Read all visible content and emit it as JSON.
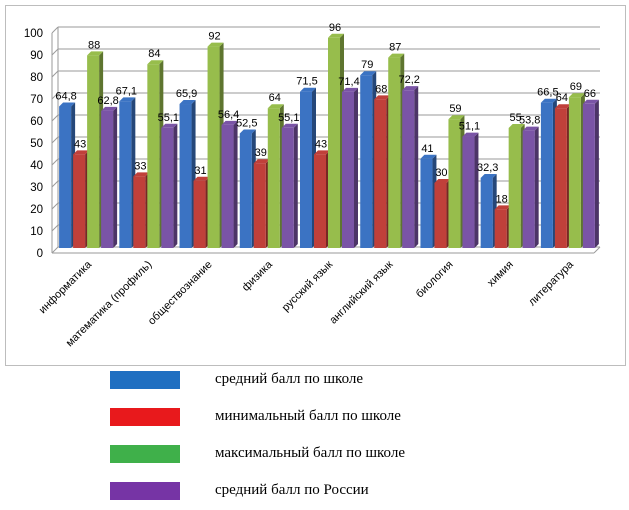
{
  "chart_data": {
    "type": "bar",
    "title": "",
    "xlabel": "",
    "ylabel": "",
    "ylim": [
      0,
      100
    ],
    "yticks": [
      "0",
      "10",
      "20",
      "30",
      "40",
      "50",
      "60",
      "70",
      "80",
      "90",
      "100"
    ],
    "grid": true,
    "legend_position": "bottom",
    "categories": [
      "информатика",
      "математика (профиль)",
      "обществознание",
      "физика",
      "русский язык",
      "английский язык",
      "биология",
      "химия",
      "литература"
    ],
    "series": [
      {
        "name": "средний балл по школе",
        "color": "#3b73c3",
        "values": [
          64.8,
          67.1,
          65.9,
          52.5,
          71.5,
          79,
          41,
          32.3,
          66.5
        ],
        "labels": [
          "64,8",
          "67,1",
          "65,9",
          "52,5",
          "71,5",
          "79",
          "41",
          "32,3",
          "66,5"
        ]
      },
      {
        "name": "минимальный балл по школе",
        "color": "#c0403a",
        "values": [
          43,
          33,
          31,
          39,
          43,
          68,
          30,
          18,
          64
        ],
        "labels": [
          "43",
          "33",
          "31",
          "39",
          "43",
          "68",
          "30",
          "18",
          "64"
        ]
      },
      {
        "name": "максимальный балл по школе",
        "color": "#97bd4c",
        "values": [
          88,
          84,
          92,
          64,
          96,
          87,
          59,
          55,
          69
        ],
        "labels": [
          "88",
          "84",
          "92",
          "64",
          "96",
          "87",
          "59",
          "55",
          "69"
        ]
      },
      {
        "name": "средний балл по России",
        "color": "#7a54a6",
        "values": [
          62.8,
          55.1,
          56.4,
          55.1,
          71.4,
          72.2,
          51.1,
          53.8,
          66
        ],
        "labels": [
          "62,8",
          "55,1",
          "56,4",
          "55,1",
          "71,4",
          "72,2",
          "51,1",
          "53,8",
          "66"
        ]
      }
    ]
  },
  "legend": {
    "items": [
      {
        "label": "средний балл по школе",
        "color": "#1f6fc1"
      },
      {
        "label": "минимальный балл по школе",
        "color": "#e8191c"
      },
      {
        "label": "максимальный балл по школе",
        "color": "#3fb04a"
      },
      {
        "label": "средний балл по России",
        "color": "#7634a5"
      }
    ]
  }
}
